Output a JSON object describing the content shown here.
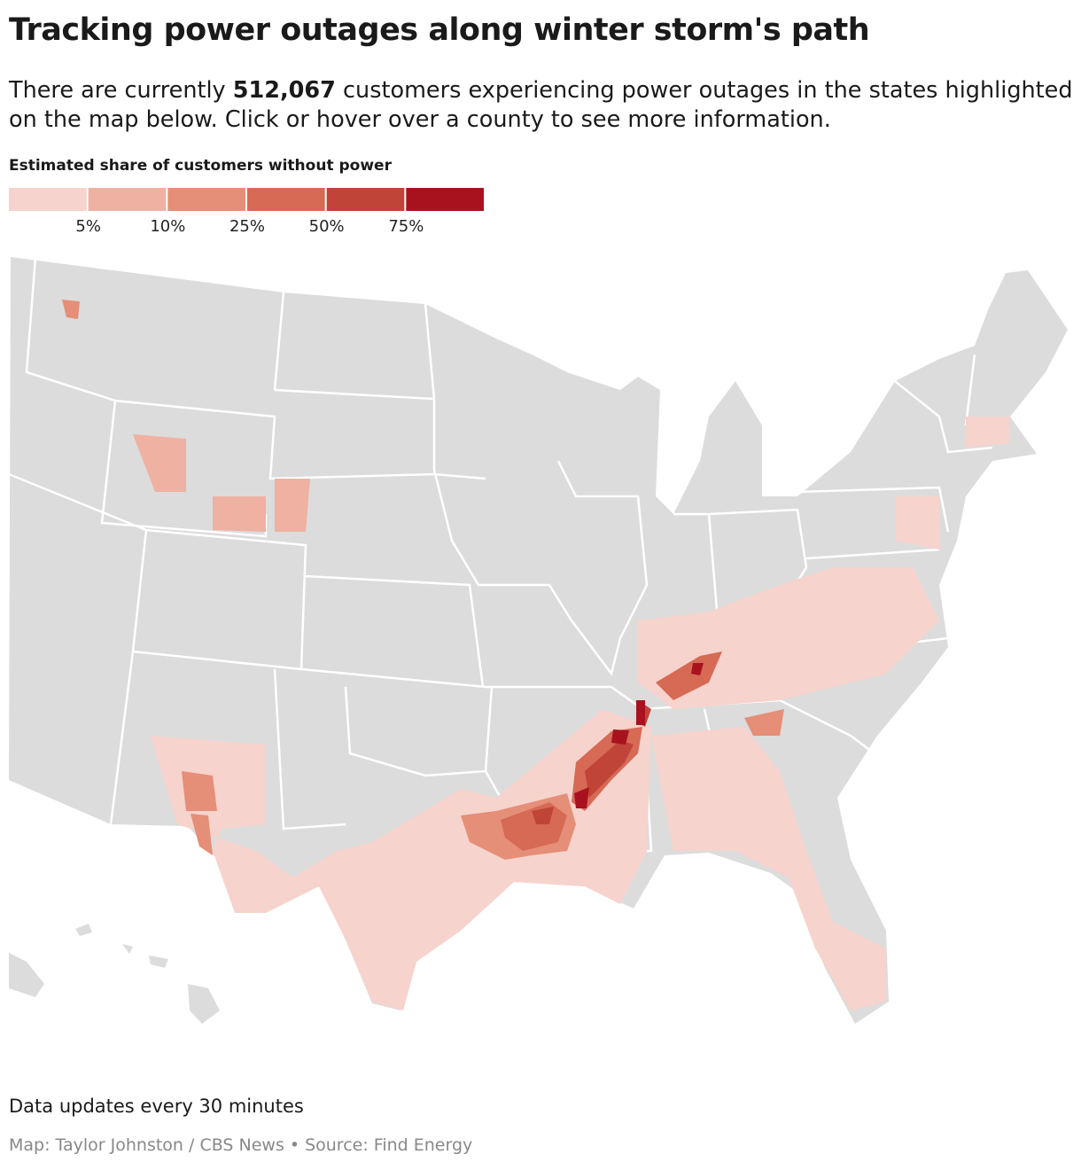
{
  "header": {
    "title": "Tracking power outages along winter storm's path",
    "subtitle": {
      "before": "There are currently ",
      "count": "512,067",
      "after": " customers experiencing power outages in the states highlighted on the map below. Click or hover over a county to see more information."
    }
  },
  "legend": {
    "title": "Estimated share of customers without power",
    "colors": [
      "#f6d3cc",
      "#efb1a2",
      "#e58e78",
      "#d66a55",
      "#c04438",
      "#a8121f"
    ],
    "ticks": [
      "5%",
      "10%",
      "25%",
      "50%",
      "75%"
    ]
  },
  "footer": {
    "note": "Data updates every 30 minutes",
    "credit": "Map: Taylor Johnston / CBS News",
    "separator": "•",
    "source": "Source: Find Energy"
  }
}
